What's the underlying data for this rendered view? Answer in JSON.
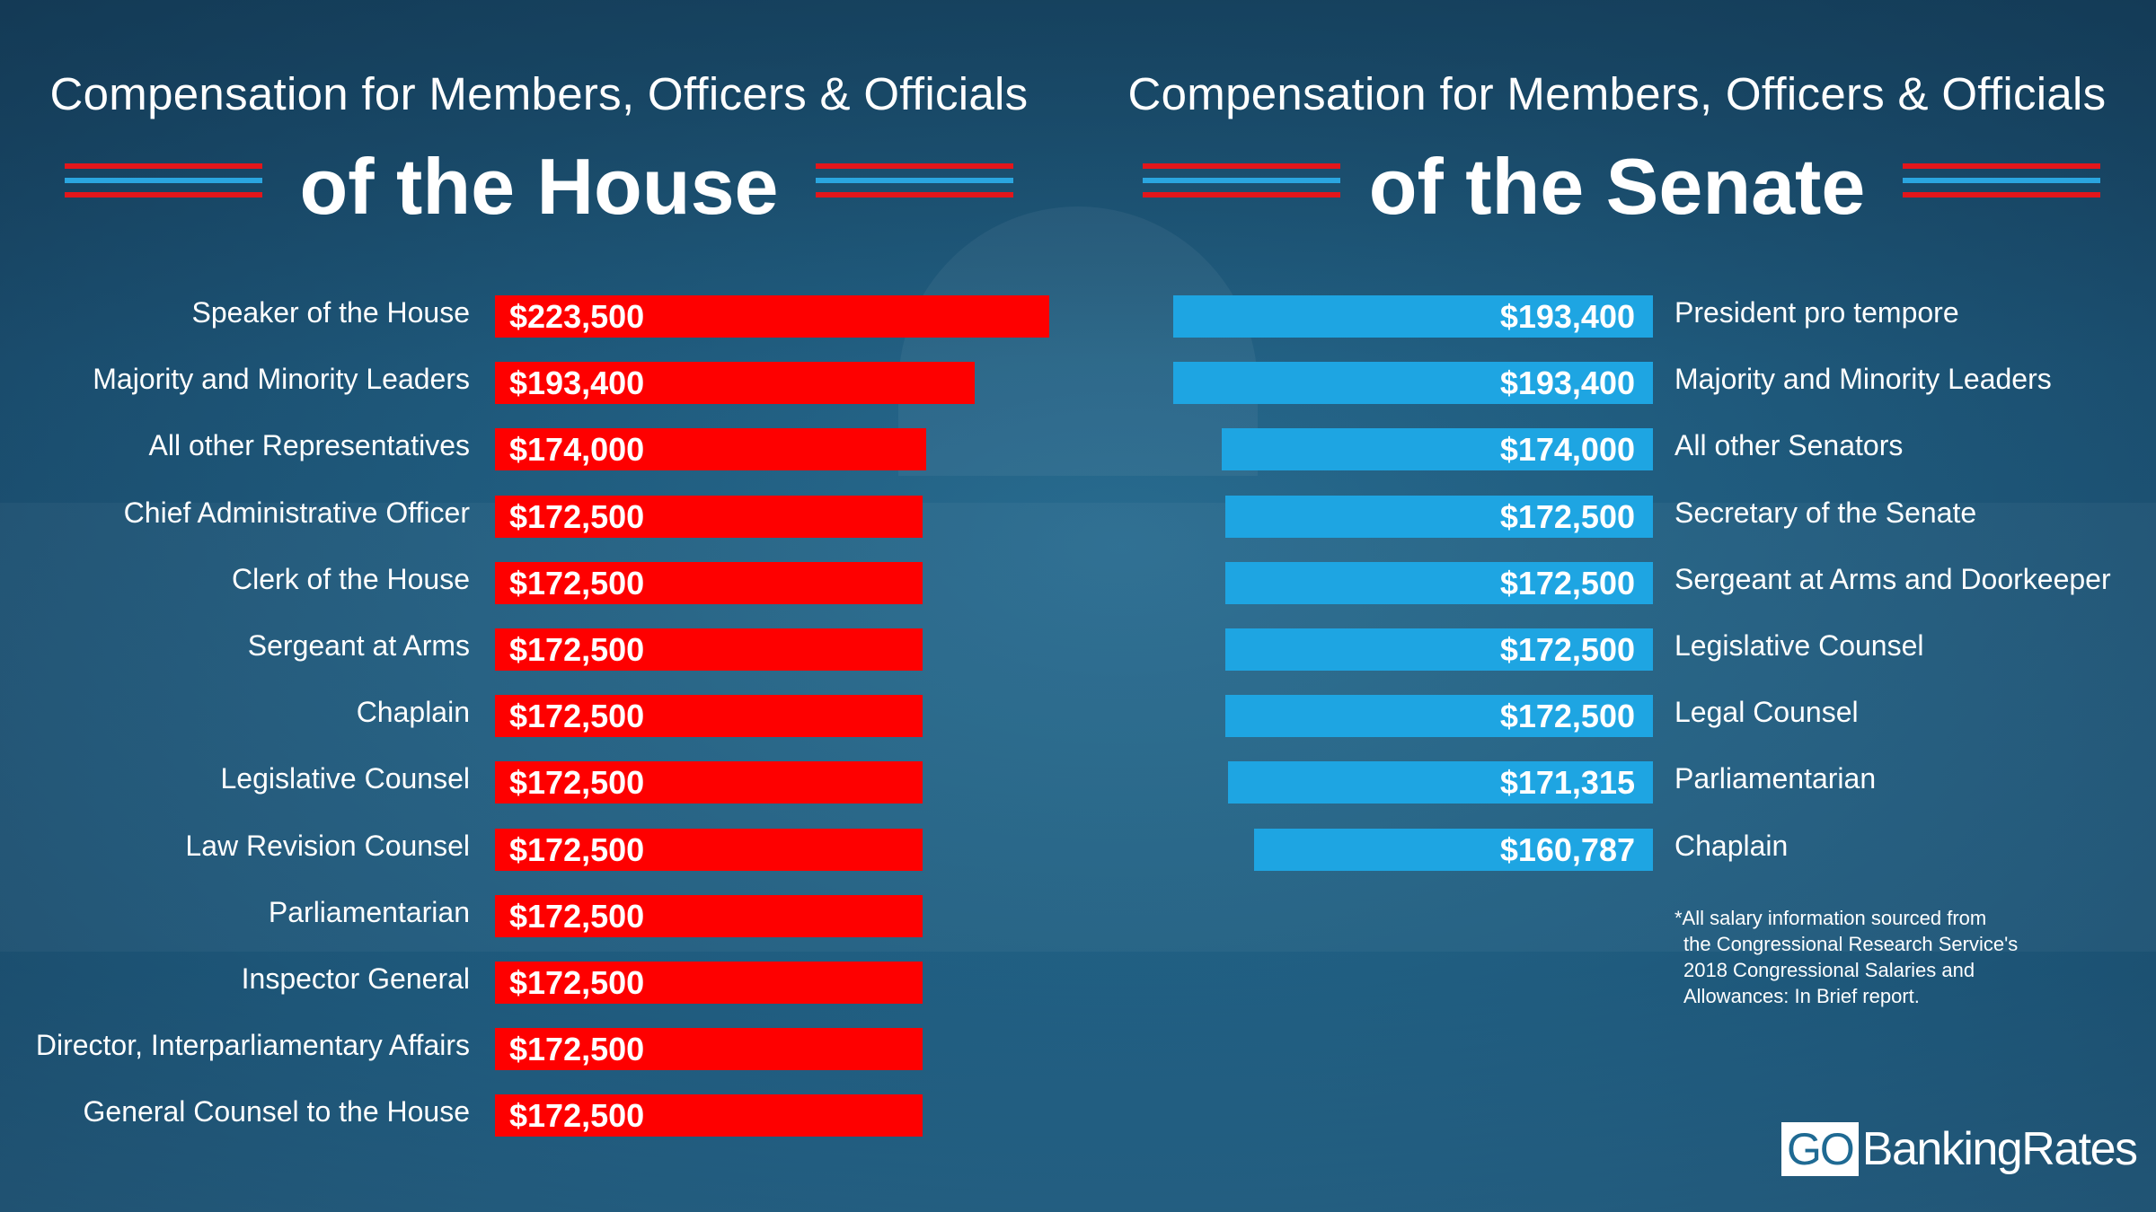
{
  "house": {
    "subtitle": "Compensation for Members, Officers & Officials",
    "title": "of the House"
  },
  "senate": {
    "subtitle": "Compensation for Members, Officers & Officials",
    "title": "of the Senate"
  },
  "colors": {
    "house_bar": "#fe0000",
    "senate_bar": "#1ea5e2",
    "stripe_red": "#e3161b",
    "stripe_blue": "#2aa6e0",
    "background": "#215f82"
  },
  "chart_data": [
    {
      "type": "bar",
      "orientation": "horizontal",
      "title": "of the House",
      "categories": [
        "Speaker of the House",
        "Majority and Minority Leaders",
        "All other Representatives",
        "Chief Administrative Officer",
        "Clerk of the House",
        "Sergeant at Arms",
        "Chaplain",
        "Legislative Counsel",
        "Law Revision Counsel",
        "Parliamentarian",
        "Inspector General",
        "Director, Interparliamentary Affairs",
        "General Counsel to the House"
      ],
      "values": [
        223500,
        193400,
        174000,
        172500,
        172500,
        172500,
        172500,
        172500,
        172500,
        172500,
        172500,
        172500,
        172500
      ],
      "value_labels": [
        "$223,500",
        "$193,400",
        "$174,000",
        "$172,500",
        "$172,500",
        "$172,500",
        "$172,500",
        "$172,500",
        "$172,500",
        "$172,500",
        "$172,500",
        "$172,500",
        "$172,500"
      ],
      "color": "#fe0000"
    },
    {
      "type": "bar",
      "orientation": "horizontal",
      "title": "of the Senate",
      "categories": [
        "President pro tempore",
        "Majority and Minority Leaders",
        "All other Senators",
        "Secretary of the Senate",
        "Sergeant at Arms and Doorkeeper",
        "Legislative Counsel",
        "Legal Counsel",
        "Parliamentarian",
        "Chaplain"
      ],
      "values": [
        193400,
        193400,
        174000,
        172500,
        172500,
        172500,
        172500,
        171315,
        160787
      ],
      "value_labels": [
        "$193,400",
        "$193,400",
        "$174,000",
        "$172,500",
        "$172,500",
        "$172,500",
        "$172,500",
        "$171,315",
        "$160,787"
      ],
      "color": "#1ea5e2"
    }
  ],
  "footnote": [
    "*All salary information sourced from",
    "the Congressional Research Service's",
    "2018 Congressional Salaries and",
    "Allowances: In Brief report."
  ],
  "logo": {
    "go": "GO",
    "rest": "BankingRates"
  }
}
